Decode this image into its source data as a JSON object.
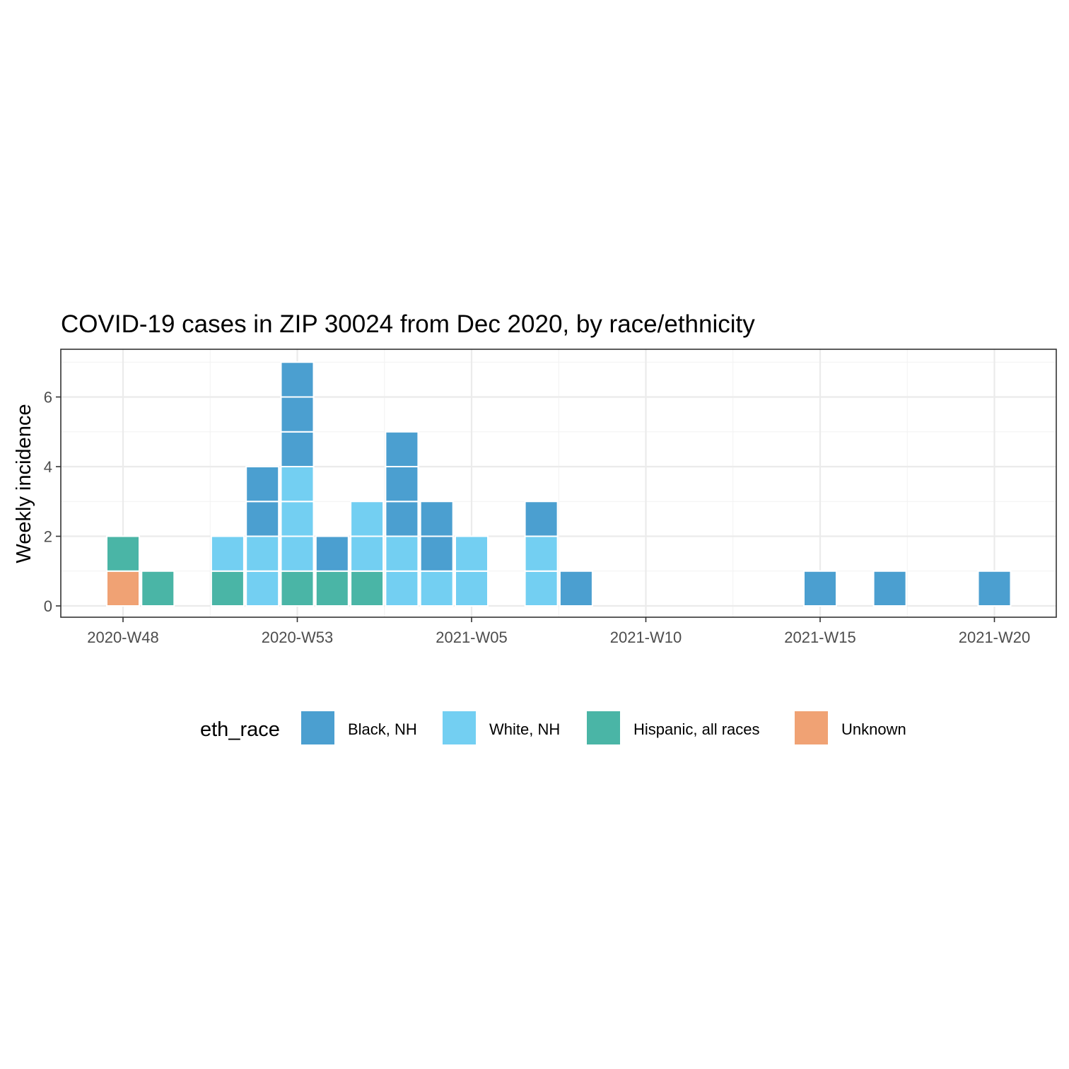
{
  "chart_data": {
    "type": "bar",
    "stacked": true,
    "title": "COVID-19 cases in ZIP 30024 from Dec 2020, by race/ethnicity",
    "xlabel": "",
    "ylabel": "Weekly incidence",
    "ylim": [
      -0.3,
      7.3
    ],
    "y_ticks": [
      0,
      2,
      4,
      6
    ],
    "x_ticks": [
      "2020-W48",
      "2020-W53",
      "2021-W05",
      "2021-W10",
      "2021-W15",
      "2021-W20"
    ],
    "grid": true,
    "legend_title": "eth_race",
    "legend_position": "bottom",
    "categories": [
      "2020-W48",
      "2020-W49",
      "2020-W50",
      "2020-W51",
      "2020-W52",
      "2020-W53",
      "2021-W01",
      "2021-W02",
      "2021-W03",
      "2021-W04",
      "2021-W05",
      "2021-W06",
      "2021-W07",
      "2021-W08",
      "2021-W09",
      "2021-W10",
      "2021-W11",
      "2021-W12",
      "2021-W13",
      "2021-W14",
      "2021-W15",
      "2021-W16",
      "2021-W17",
      "2021-W18",
      "2021-W19",
      "2021-W20"
    ],
    "series": [
      {
        "name": "Unknown",
        "color": "#f0a274",
        "values": [
          1,
          0,
          0,
          0,
          0,
          0,
          0,
          0,
          0,
          0,
          0,
          0,
          0,
          0,
          0,
          0,
          0,
          0,
          0,
          0,
          0,
          0,
          0,
          0,
          0,
          0
        ]
      },
      {
        "name": "Hispanic, all races",
        "color": "#4ab5a6",
        "values": [
          1,
          1,
          0,
          1,
          0,
          1,
          1,
          1,
          0,
          0,
          0,
          0,
          0,
          0,
          0,
          0,
          0,
          0,
          0,
          0,
          0,
          0,
          0,
          0,
          0,
          0
        ]
      },
      {
        "name": "White, NH",
        "color": "#73cff2",
        "values": [
          0,
          0,
          0,
          1,
          2,
          3,
          0,
          2,
          2,
          1,
          2,
          0,
          2,
          0,
          0,
          0,
          0,
          0,
          0,
          0,
          0,
          0,
          0,
          0,
          0,
          0
        ]
      },
      {
        "name": "Black, NH",
        "color": "#4b9fd0",
        "values": [
          0,
          0,
          0,
          0,
          2,
          3,
          1,
          0,
          3,
          2,
          0,
          0,
          1,
          1,
          0,
          0,
          0,
          0,
          0,
          0,
          1,
          0,
          1,
          0,
          0,
          1
        ]
      }
    ],
    "legend_order": [
      "Black, NH",
      "White, NH",
      "Hispanic, all races",
      "Unknown"
    ]
  }
}
